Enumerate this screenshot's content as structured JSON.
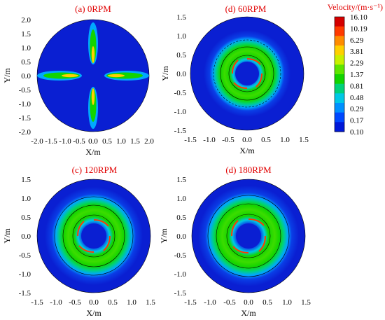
{
  "chart_data": [
    {
      "type": "heatmap",
      "title": "(a) 0RPM",
      "xlabel": "X/m",
      "ylabel": "Y/m",
      "xlim": [
        -2.0,
        2.0
      ],
      "ylim": [
        -2.0,
        2.0
      ],
      "xticks": [
        "-2.0",
        "-1.5",
        "-1.0",
        "-0.5",
        "0.0",
        "0.5",
        "1.0",
        "1.5",
        "2.0"
      ],
      "yticks": [
        "-2.0",
        "-1.5",
        "-1.0",
        "-0.5",
        "0.0",
        "0.5",
        "1.0",
        "1.5",
        "2.0"
      ],
      "pattern": "four radial jets along the axes",
      "domain_radius": 2.0
    },
    {
      "type": "heatmap",
      "title": "(d) 60RPM",
      "xlabel": "X/m",
      "ylabel": "Y/m",
      "xlim": [
        -1.5,
        1.5
      ],
      "ylim": [
        -1.5,
        1.5
      ],
      "xticks": [
        "-1.5",
        "-1.0",
        "-0.5",
        "0.0",
        "0.5",
        "1.0",
        "1.5"
      ],
      "yticks": [
        "-1.5",
        "-1.0",
        "-0.5",
        "0.0",
        "0.5",
        "1.0",
        "1.5"
      ],
      "pattern": "swirling annular ring",
      "domain_radius": 1.5
    },
    {
      "type": "heatmap",
      "title": "(c) 120RPM",
      "xlabel": "X/m",
      "ylabel": "Y/m",
      "xlim": [
        -1.5,
        1.5
      ],
      "ylim": [
        -1.5,
        1.5
      ],
      "xticks": [
        "-1.5",
        "-1.0",
        "-0.5",
        "0.0",
        "0.5",
        "1.0",
        "1.5"
      ],
      "yticks": [
        "-1.5",
        "-1.0",
        "-0.5",
        "0.0",
        "0.5",
        "1.0",
        "1.5"
      ],
      "pattern": "swirling annular ring",
      "domain_radius": 1.5
    },
    {
      "type": "heatmap",
      "title": "(d) 180RPM",
      "xlabel": "X/m",
      "ylabel": "Y/m",
      "xlim": [
        -1.5,
        1.5
      ],
      "ylim": [
        -1.5,
        1.5
      ],
      "xticks": [
        "-1.5",
        "-1.0",
        "-0.5",
        "0.0",
        "0.5",
        "1.0",
        "1.5"
      ],
      "yticks": [
        "-1.5",
        "-1.0",
        "-0.5",
        "0.0",
        "0.5",
        "1.0",
        "1.5"
      ],
      "pattern": "swirling annular ring",
      "domain_radius": 1.5
    }
  ],
  "colorbar": {
    "title": "Velocity/(m·s⁻¹)",
    "levels": [
      "16.10",
      "10.19",
      "6.29",
      "3.81",
      "2.29",
      "1.37",
      "0.81",
      "0.48",
      "0.29",
      "0.17",
      "0.10"
    ],
    "colors": [
      "#d40000",
      "#ff3a00",
      "#ff8c00",
      "#ffd000",
      "#c9f000",
      "#5fe600",
      "#12d400",
      "#00d27a",
      "#00c8e6",
      "#0090ff",
      "#0048ff",
      "#0018d8"
    ]
  },
  "colors": {
    "background_field": "#0a1fd2",
    "title_text": "#e10000"
  }
}
